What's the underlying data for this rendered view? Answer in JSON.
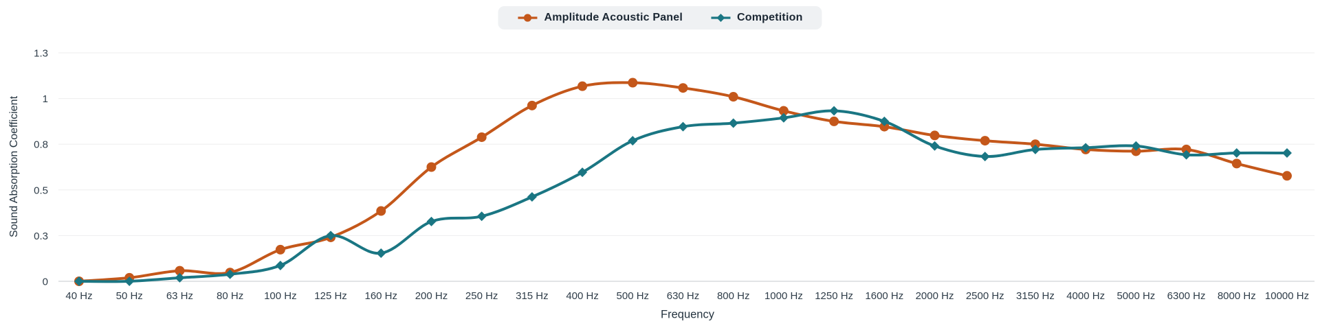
{
  "colors": {
    "accent_orange": "#C4571A",
    "accent_teal": "#1A7683",
    "legend_text": "#1B2733",
    "axis_text": "#2F3D49",
    "axis_title_text": "#24333F",
    "grid_line": "#EDEDEE",
    "zero_line": "#D8DBDD",
    "legend_bg": "#EFF1F3",
    "background": "#FFFFFF"
  },
  "chart_data": {
    "type": "line",
    "title": "",
    "xlabel": "Frequency",
    "ylabel": "Sound Absorption Coefficient",
    "grid": true,
    "legend_position": "top-center",
    "ylim": [
      0,
      1.3
    ],
    "y_ticks": [
      {
        "value": 0,
        "label": "0"
      },
      {
        "value": 0.26,
        "label": "0.3"
      },
      {
        "value": 0.52,
        "label": "0.5"
      },
      {
        "value": 0.78,
        "label": "0.8"
      },
      {
        "value": 1.04,
        "label": "1"
      },
      {
        "value": 1.3,
        "label": "1.3"
      }
    ],
    "categories": [
      "40 Hz",
      "50 Hz",
      "63 Hz",
      "80 Hz",
      "100 Hz",
      "125 Hz",
      "160 Hz",
      "200 Hz",
      "250 Hz",
      "315 Hz",
      "400 Hz",
      "500 Hz",
      "630 Hz",
      "800 Hz",
      "1000 Hz",
      "1250 Hz",
      "1600 Hz",
      "2000 Hz",
      "2500 Hz",
      "3150 Hz",
      "4000 Hz",
      "5000 Hz",
      "6300 Hz",
      "8000 Hz",
      "10000 Hz"
    ],
    "series": [
      {
        "name": "Amplitude Acoustic Panel",
        "color": "#C4571A",
        "marker": "circle",
        "values": [
          0,
          0.02,
          0.06,
          0.05,
          0.18,
          0.25,
          0.4,
          0.65,
          0.82,
          1.0,
          1.11,
          1.13,
          1.1,
          1.05,
          0.97,
          0.91,
          0.88,
          0.83,
          0.8,
          0.78,
          0.75,
          0.74,
          0.75,
          0.67,
          0.6
        ]
      },
      {
        "name": "Competition",
        "color": "#1A7683",
        "marker": "diamond",
        "values": [
          0,
          0,
          0.02,
          0.04,
          0.09,
          0.26,
          0.16,
          0.34,
          0.37,
          0.48,
          0.62,
          0.8,
          0.88,
          0.9,
          0.93,
          0.97,
          0.91,
          0.77,
          0.71,
          0.75,
          0.76,
          0.77,
          0.72,
          0.73,
          0.73
        ]
      }
    ]
  }
}
